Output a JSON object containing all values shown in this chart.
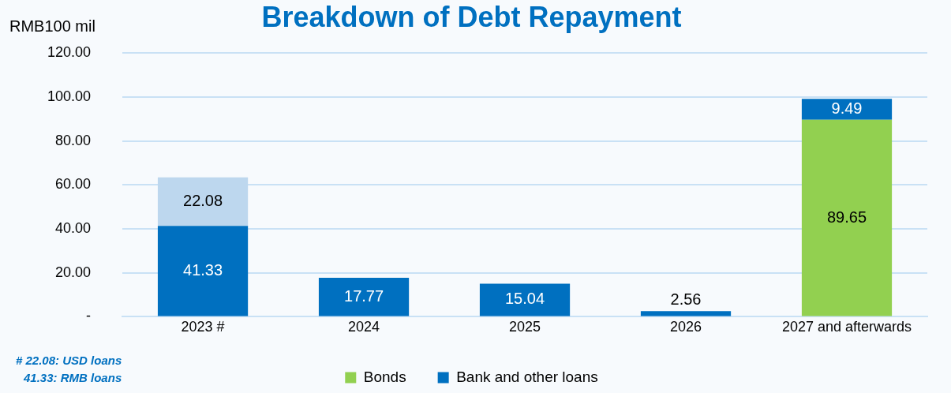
{
  "chart_data": {
    "type": "bar",
    "title": "Breakdown of Debt Repayment",
    "ylabel": "RMB100 mil",
    "categories": [
      "2023 #",
      "2024",
      "2025",
      "2026",
      "2027 and afterwards"
    ],
    "series": [
      {
        "name": "Bonds",
        "color": "#92d050",
        "values": [
          null,
          null,
          null,
          null,
          89.65
        ]
      },
      {
        "name": "Bank and other loans",
        "color": "#0070c0",
        "values": [
          41.33,
          17.77,
          15.04,
          2.56,
          9.49
        ]
      },
      {
        "color": "#bdd7ee",
        "values": [
          22.08,
          null,
          null,
          null,
          null
        ]
      }
    ],
    "stacked": true,
    "ylim": [
      0,
      120
    ],
    "yticks": [
      {
        "value": 0,
        "label": "-"
      },
      {
        "value": 20,
        "label": "20.00"
      },
      {
        "value": 40,
        "label": "40.00"
      },
      {
        "value": 60,
        "label": "60.00"
      },
      {
        "value": 80,
        "label": "80.00"
      },
      {
        "value": 100,
        "label": "100.00"
      },
      {
        "value": 120,
        "label": "120.00"
      }
    ],
    "grid": "y",
    "legend": "bottom",
    "data_labels": true,
    "annotations": [
      "# 22.08: USD loans",
      "41.33: RMB loans"
    ]
  }
}
